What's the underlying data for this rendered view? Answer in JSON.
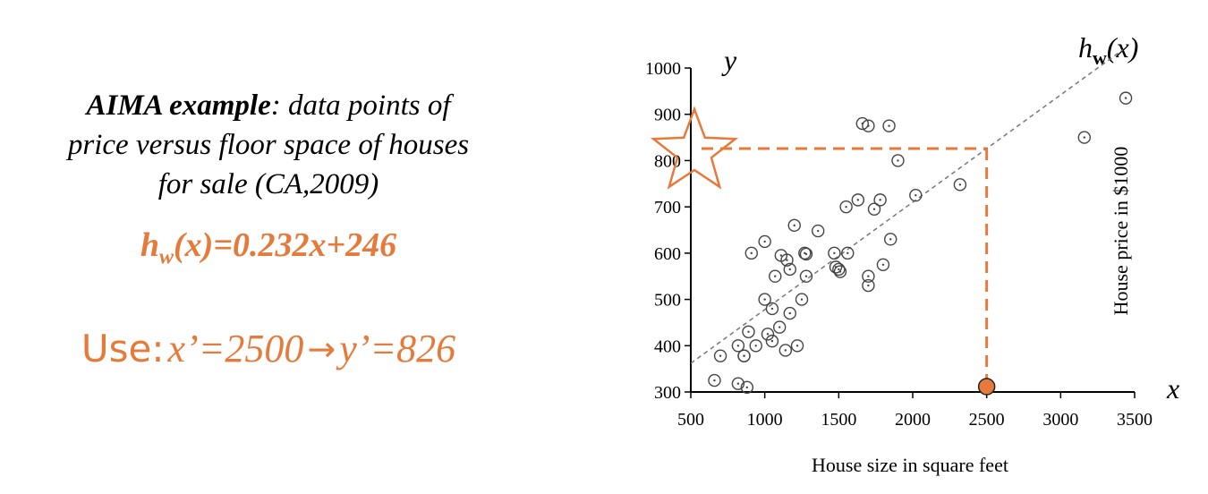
{
  "description": {
    "bold_part": "AIMA example",
    "rest_line1": ": data points of",
    "line2": "price versus floor space of houses",
    "line3": "for sale (CA,2009)"
  },
  "formula": {
    "lhs": "h",
    "sub": "w",
    "rhs": "(x)=0.232x+246"
  },
  "usage": {
    "word": "Use:",
    "x_part": "x’=2500",
    "arrow": "→",
    "y_part": "y’=826"
  },
  "colors": {
    "accent": "#E67A3A",
    "points": "#444444",
    "fit_line": "#777777"
  },
  "chart_data": {
    "type": "scatter",
    "xlabel": "House size in square feet",
    "ylabel": "House price in $1000",
    "xlim": [
      500,
      3500
    ],
    "ylim": [
      300,
      1000
    ],
    "xticks": [
      500,
      1000,
      1500,
      2000,
      2500,
      3000,
      3500
    ],
    "yticks": [
      300,
      400,
      500,
      600,
      700,
      800,
      900,
      1000
    ],
    "axis_var_x": "x",
    "axis_var_y": "y",
    "line_label": {
      "h": "h",
      "sub": "w",
      "rest": "(x)"
    },
    "fit_line": {
      "slope": 0.232,
      "intercept": 246,
      "x_from": 500,
      "x_to": 3420
    },
    "points": [
      {
        "x": 660,
        "y": 325
      },
      {
        "x": 700,
        "y": 378
      },
      {
        "x": 820,
        "y": 318
      },
      {
        "x": 880,
        "y": 310
      },
      {
        "x": 820,
        "y": 400
      },
      {
        "x": 860,
        "y": 378
      },
      {
        "x": 860,
        "y": 378
      },
      {
        "x": 890,
        "y": 430
      },
      {
        "x": 940,
        "y": 400
      },
      {
        "x": 910,
        "y": 600
      },
      {
        "x": 1000,
        "y": 625
      },
      {
        "x": 1000,
        "y": 500
      },
      {
        "x": 1020,
        "y": 425
      },
      {
        "x": 1050,
        "y": 480
      },
      {
        "x": 1050,
        "y": 410
      },
      {
        "x": 1070,
        "y": 550
      },
      {
        "x": 1100,
        "y": 440
      },
      {
        "x": 1110,
        "y": 595
      },
      {
        "x": 1140,
        "y": 390
      },
      {
        "x": 1150,
        "y": 585
      },
      {
        "x": 1170,
        "y": 470
      },
      {
        "x": 1170,
        "y": 565
      },
      {
        "x": 1200,
        "y": 660
      },
      {
        "x": 1220,
        "y": 400
      },
      {
        "x": 1250,
        "y": 500
      },
      {
        "x": 1270,
        "y": 600
      },
      {
        "x": 1280,
        "y": 598
      },
      {
        "x": 1280,
        "y": 550
      },
      {
        "x": 1360,
        "y": 648
      },
      {
        "x": 1470,
        "y": 600
      },
      {
        "x": 1480,
        "y": 570
      },
      {
        "x": 1500,
        "y": 565
      },
      {
        "x": 1510,
        "y": 560
      },
      {
        "x": 1550,
        "y": 700
      },
      {
        "x": 1560,
        "y": 600
      },
      {
        "x": 1630,
        "y": 715
      },
      {
        "x": 1660,
        "y": 880
      },
      {
        "x": 1700,
        "y": 875
      },
      {
        "x": 1700,
        "y": 550
      },
      {
        "x": 1700,
        "y": 530
      },
      {
        "x": 1740,
        "y": 695
      },
      {
        "x": 1780,
        "y": 715
      },
      {
        "x": 1800,
        "y": 575
      },
      {
        "x": 1840,
        "y": 875
      },
      {
        "x": 1850,
        "y": 630
      },
      {
        "x": 1900,
        "y": 800
      },
      {
        "x": 2020,
        "y": 725
      },
      {
        "x": 2320,
        "y": 748
      },
      {
        "x": 3160,
        "y": 850
      },
      {
        "x": 3440,
        "y": 935
      }
    ],
    "query": {
      "x": 2500,
      "y": 826
    }
  }
}
